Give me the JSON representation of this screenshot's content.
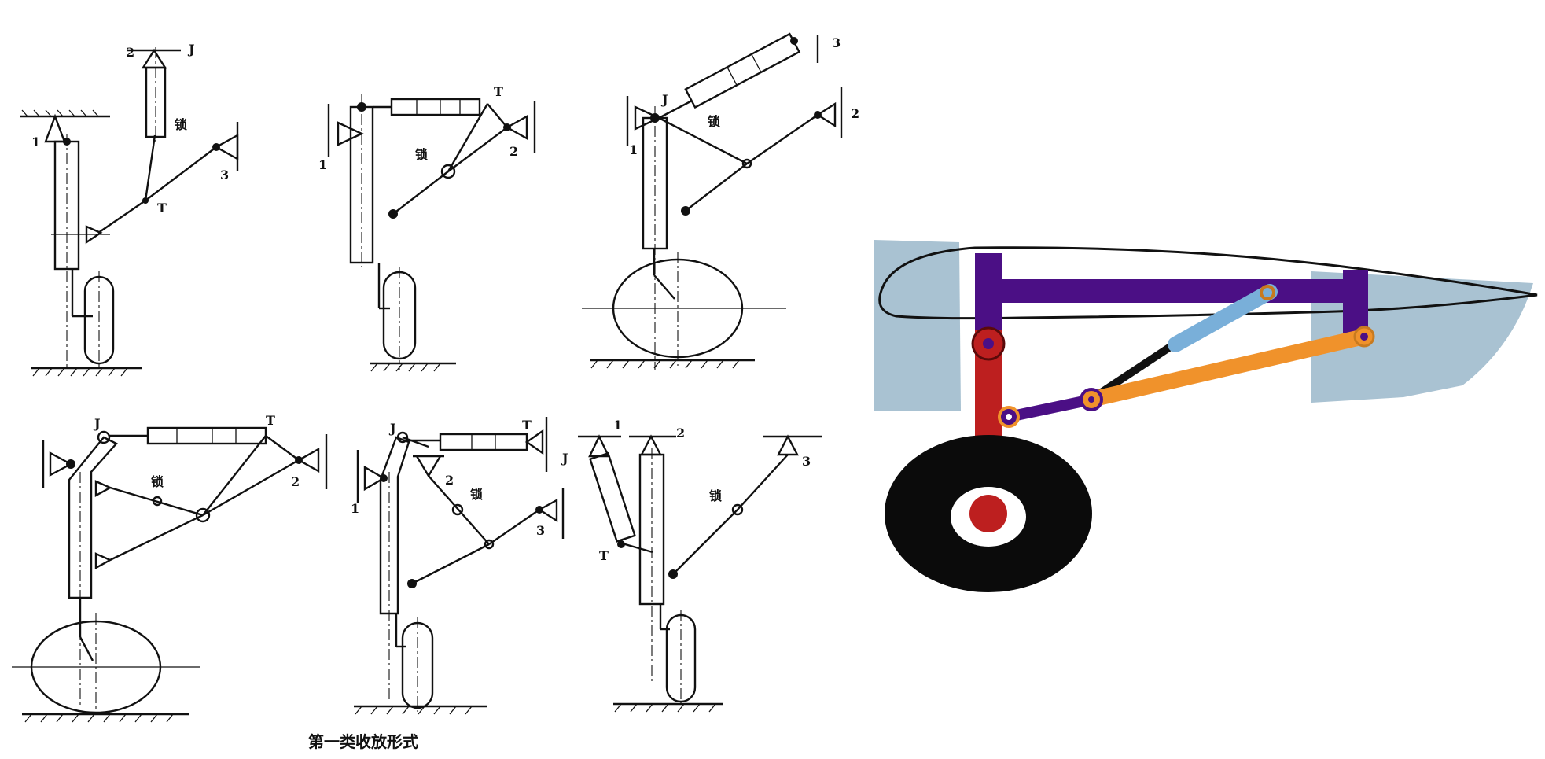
{
  "header": {
    "title": ""
  },
  "caption": "第一类收放形式",
  "diagrams": [
    {
      "labels": [
        "1",
        "2",
        "J",
        "3",
        "T",
        "锁"
      ]
    },
    {
      "labels": [
        "1",
        "T",
        "2",
        "锁"
      ]
    },
    {
      "labels": [
        "J",
        "1",
        "3",
        "2",
        "锁"
      ]
    },
    {
      "labels": [
        "J",
        "T",
        "2",
        "锁"
      ]
    },
    {
      "labels": [
        "J",
        "T",
        "1",
        "2",
        "3",
        "锁"
      ]
    },
    {
      "labels": [
        "1",
        "J",
        "2",
        "3",
        "T",
        "锁"
      ]
    }
  ],
  "colors": {
    "skin": "#a9c2d2",
    "strut": "#bd1f1f",
    "frame": "#4b0f85",
    "drag_brace": "#f0922b",
    "actuator": "#79afd9",
    "wheel": "#0b0b0b",
    "hub": "#ffffff"
  }
}
